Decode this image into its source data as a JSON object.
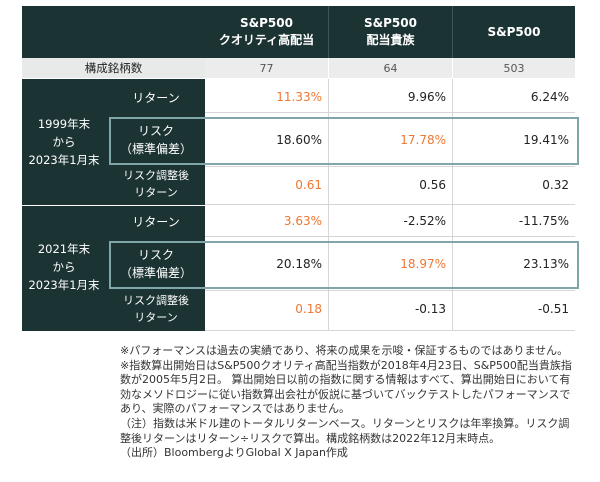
{
  "header": {
    "col1": [
      "S&P500",
      "クオリティ高配当"
    ],
    "col2": [
      "S&P500",
      "配当貴族"
    ],
    "col3": [
      "S&P500"
    ]
  },
  "constituents": {
    "label": "構成銘柄数",
    "values": [
      "77",
      "64",
      "503"
    ]
  },
  "period1": {
    "label": [
      "1999年末",
      "から",
      "2023年1月末"
    ],
    "rows": [
      {
        "label": [
          "リターン"
        ],
        "values": [
          "11.33%",
          "9.96%",
          "6.24%"
        ]
      },
      {
        "label": [
          "リスク",
          "（標準偏差）"
        ],
        "values": [
          "18.60%",
          "17.78%",
          "19.41%"
        ]
      },
      {
        "label": [
          "リスク調整後",
          "リターン"
        ],
        "values": [
          "0.61",
          "0.56",
          "0.32"
        ]
      }
    ]
  },
  "period2": {
    "label": [
      "2021年末",
      "から",
      "2023年1月末"
    ],
    "rows": [
      {
        "label": [
          "リターン"
        ],
        "values": [
          "3.63%",
          "-2.52%",
          "-11.75%"
        ]
      },
      {
        "label": [
          "リスク",
          "（標準偏差）"
        ],
        "values": [
          "20.18%",
          "18.97%",
          "23.13%"
        ]
      },
      {
        "label": [
          "リスク調整後",
          "リターン"
        ],
        "values": [
          "0.18",
          "-0.13",
          "-0.51"
        ]
      }
    ]
  },
  "colors": {
    "header_bg": "#1c3334",
    "highlight": "#ee7733",
    "box": "#7fa7a9"
  },
  "notes": [
    "※パフォーマンスは過去の実績であり、将来の成果を示唆・保証するものではありません。",
    "※指数算出開始日はS&P500クオリティ高配当指数が2018年4月23日、S&P500配当貴族指",
    "数が2005年5月2日。 算出開始日以前の指数に関する情報はすべて、算出開始日において有",
    "効なメソドロジーに従い指数算出会社が仮説に基づいてバックテストしたパフォーマンスで",
    "あり、実際のパフォーマンスではありません。",
    "（注）指数は米ドル建のトータルリターンベース。リターンとリスクは年率換算。リスク調",
    "整後リターンはリターン÷リスクで算出。構成銘柄数は2022年12月末時点。",
    "（出所）BloombergよりGlobal X Japan作成"
  ]
}
